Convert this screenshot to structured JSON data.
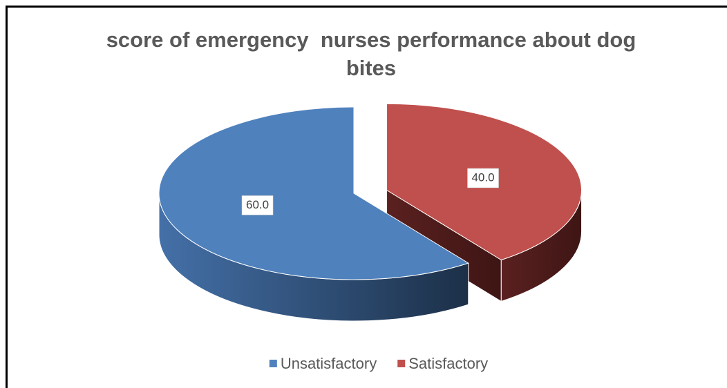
{
  "chart_data": {
    "type": "pie",
    "title": "score of emergency  nurses performance about dog bites",
    "categories": [
      "Satisfactory",
      "Unsatisfactory"
    ],
    "values": [
      40,
      60
    ],
    "value_labels": [
      "40.0",
      "60.0"
    ],
    "colors": [
      "#c0504d",
      "#4f81bd"
    ],
    "exploded": [
      true,
      false
    ],
    "legend": "bottom",
    "legend_order": [
      1,
      0
    ]
  }
}
